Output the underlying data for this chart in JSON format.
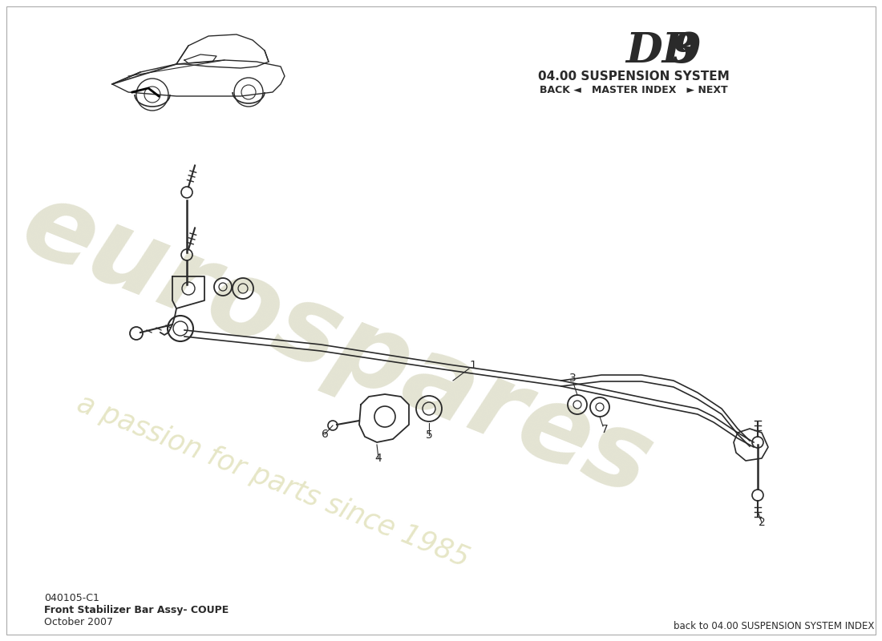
{
  "title_db": "DB",
  "title_9": "9",
  "subtitle": "04.00 SUSPENSION SYSTEM",
  "nav_text": "BACK ◄   MASTER INDEX   ► NEXT",
  "part_code": "040105-C1",
  "part_name": "Front Stabilizer Bar Assy- COUPE",
  "part_date": "October 2007",
  "footer_text": "back to 04.00 SUSPENSION SYSTEM INDEX",
  "bg_color": "#ffffff",
  "line_color": "#2a2a2a",
  "wm_color1": "#d8d8c0",
  "wm_color2": "#e0e0b8"
}
